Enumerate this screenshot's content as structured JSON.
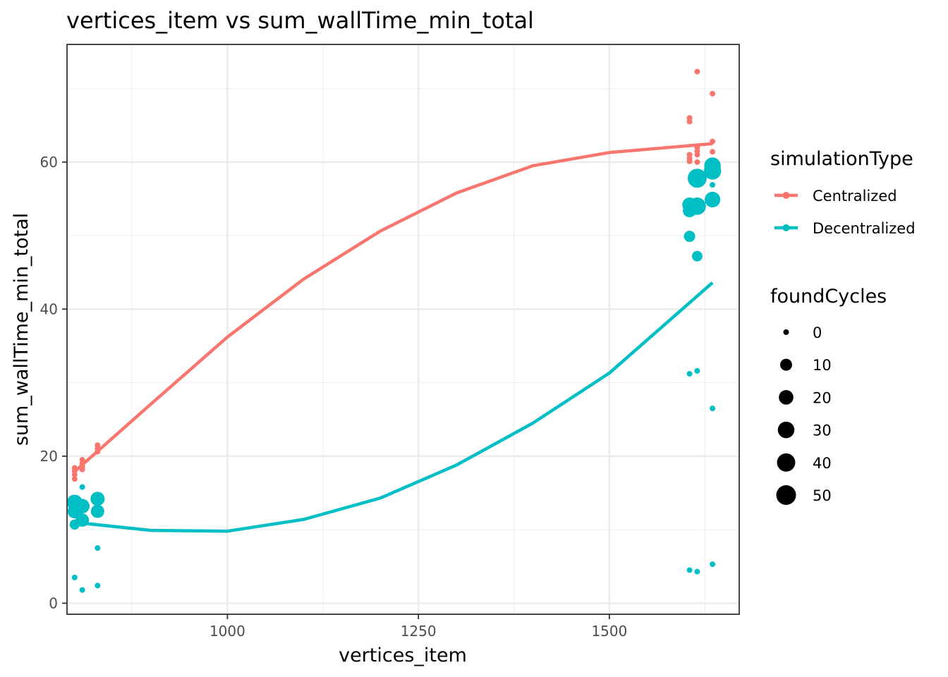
{
  "chart_data": {
    "type": "scatter",
    "title": "vertices_item  vs  sum_wallTime_min_total",
    "xlabel": "vertices_item",
    "ylabel": "sum_wallTime_min_total",
    "xlim": [
      790,
      1670
    ],
    "ylim": [
      -1.5,
      76
    ],
    "x_ticks": [
      1000,
      1250,
      1500
    ],
    "y_ticks": [
      0,
      20,
      40,
      60
    ],
    "grid": true,
    "legend": {
      "position": "right",
      "color_title": "simulationType",
      "size_title": "foundCycles",
      "size_values": [
        0,
        10,
        20,
        30,
        40,
        50
      ]
    },
    "series": [
      {
        "name": "Centralized",
        "color": "#F8766D",
        "points": [
          {
            "x": 800,
            "y": 18.4,
            "size": 0
          },
          {
            "x": 800,
            "y": 18.0,
            "size": 0
          },
          {
            "x": 800,
            "y": 17.5,
            "size": 0
          },
          {
            "x": 800,
            "y": 16.9,
            "size": 0
          },
          {
            "x": 810,
            "y": 19.5,
            "size": 0
          },
          {
            "x": 810,
            "y": 19.0,
            "size": 0
          },
          {
            "x": 810,
            "y": 18.6,
            "size": 0
          },
          {
            "x": 810,
            "y": 18.2,
            "size": 0
          },
          {
            "x": 830,
            "y": 21.5,
            "size": 0
          },
          {
            "x": 830,
            "y": 21.0,
            "size": 0
          },
          {
            "x": 830,
            "y": 20.6,
            "size": 0
          },
          {
            "x": 1605,
            "y": 66.0,
            "size": 0
          },
          {
            "x": 1605,
            "y": 65.5,
            "size": 0
          },
          {
            "x": 1605,
            "y": 61.0,
            "size": 0
          },
          {
            "x": 1605,
            "y": 60.5,
            "size": 0
          },
          {
            "x": 1605,
            "y": 60.1,
            "size": 0
          },
          {
            "x": 1615,
            "y": 72.3,
            "size": 0
          },
          {
            "x": 1615,
            "y": 62.0,
            "size": 0
          },
          {
            "x": 1615,
            "y": 61.5,
            "size": 0
          },
          {
            "x": 1615,
            "y": 61.0,
            "size": 0
          },
          {
            "x": 1615,
            "y": 60.0,
            "size": 0
          },
          {
            "x": 1635,
            "y": 69.3,
            "size": 0
          },
          {
            "x": 1635,
            "y": 62.8,
            "size": 0
          },
          {
            "x": 1635,
            "y": 61.4,
            "size": 0
          }
        ]
      },
      {
        "name": "Decentralized",
        "color": "#00BFC4",
        "points": [
          {
            "x": 800,
            "y": 13.7,
            "size": 25
          },
          {
            "x": 800,
            "y": 12.5,
            "size": 18
          },
          {
            "x": 800,
            "y": 10.7,
            "size": 5
          },
          {
            "x": 800,
            "y": 3.5,
            "size": 0
          },
          {
            "x": 810,
            "y": 15.8,
            "size": 0
          },
          {
            "x": 810,
            "y": 13.2,
            "size": 20
          },
          {
            "x": 810,
            "y": 11.3,
            "size": 15
          },
          {
            "x": 810,
            "y": 1.8,
            "size": 0
          },
          {
            "x": 830,
            "y": 14.2,
            "size": 18
          },
          {
            "x": 830,
            "y": 12.5,
            "size": 15
          },
          {
            "x": 830,
            "y": 7.5,
            "size": 0
          },
          {
            "x": 830,
            "y": 2.4,
            "size": 0
          },
          {
            "x": 1605,
            "y": 54.2,
            "size": 20
          },
          {
            "x": 1605,
            "y": 53.4,
            "size": 15
          },
          {
            "x": 1605,
            "y": 49.9,
            "size": 8
          },
          {
            "x": 1605,
            "y": 31.2,
            "size": 0
          },
          {
            "x": 1605,
            "y": 4.5,
            "size": 0
          },
          {
            "x": 1615,
            "y": 57.8,
            "size": 45
          },
          {
            "x": 1615,
            "y": 54.0,
            "size": 35
          },
          {
            "x": 1615,
            "y": 47.2,
            "size": 6
          },
          {
            "x": 1615,
            "y": 31.6,
            "size": 0
          },
          {
            "x": 1615,
            "y": 4.3,
            "size": 0
          },
          {
            "x": 1635,
            "y": 59.5,
            "size": 30
          },
          {
            "x": 1635,
            "y": 58.8,
            "size": 35
          },
          {
            "x": 1635,
            "y": 56.9,
            "size": 0
          },
          {
            "x": 1635,
            "y": 54.9,
            "size": 25
          },
          {
            "x": 1635,
            "y": 26.5,
            "size": 0
          },
          {
            "x": 1635,
            "y": 5.3,
            "size": 0
          }
        ]
      }
    ],
    "trend_lines": [
      {
        "series": "Centralized",
        "color": "#F8766D",
        "x": [
          800,
          900,
          1000,
          1100,
          1200,
          1300,
          1400,
          1500,
          1635
        ],
        "y": [
          17.9,
          27.1,
          36.2,
          44.1,
          50.6,
          55.8,
          59.5,
          61.3,
          62.5
        ]
      },
      {
        "series": "Decentralized",
        "color": "#00BFC4",
        "x": [
          800,
          900,
          1000,
          1100,
          1200,
          1300,
          1400,
          1500,
          1635
        ],
        "y": [
          11.0,
          9.9,
          9.8,
          11.4,
          14.3,
          18.8,
          24.5,
          31.3,
          43.6
        ]
      }
    ]
  }
}
